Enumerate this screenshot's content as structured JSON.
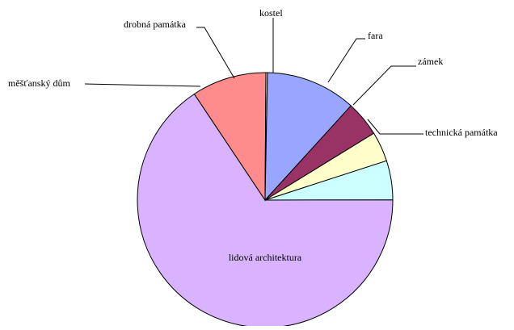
{
  "chart_data": {
    "type": "pie",
    "title": "",
    "start_angle_deg": 0,
    "direction": "clockwise",
    "slices": [
      {
        "label": "technická památka",
        "value": 5.0,
        "color": "#ccffff"
      },
      {
        "label": "lidová architektura",
        "value": 66.0,
        "color": "#d9b3ff"
      },
      {
        "label": "měšťanský dům",
        "value": 9.5,
        "color": "#ff8c8c"
      },
      {
        "label": "drobná památka",
        "value": 0.2,
        "color": "#ffffcc"
      },
      {
        "label": "kostel",
        "value": 11.5,
        "color": "#99a6ff"
      },
      {
        "label": "fara",
        "value": 4.5,
        "color": "#993366"
      },
      {
        "label": "zámek",
        "value": 3.8,
        "color": "#ffffcc"
      }
    ]
  }
}
